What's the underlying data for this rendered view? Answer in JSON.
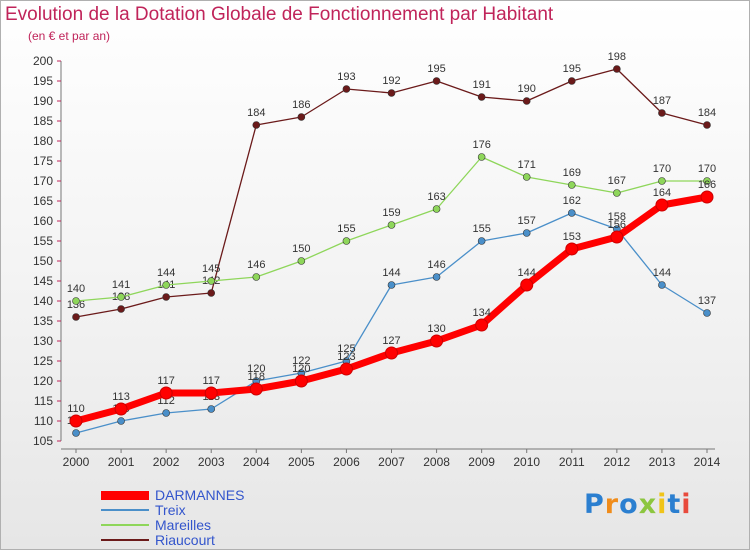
{
  "title": "Evolution de la Dotation Globale de Fonctionnement par Habitant",
  "subtitle": "(en € et par an)",
  "logo": {
    "p": "P",
    "r": "r",
    "o": "o",
    "x": "x",
    "i1": "i",
    "t": "t",
    "i2": "i"
  },
  "colors": {
    "title": "#c0245a",
    "darmannes": "#ff0000",
    "treix": "#4a8fc9",
    "mareilles": "#8ed65a",
    "riaucourt": "#6b1a1a"
  },
  "chart_data": {
    "type": "line",
    "title": "Evolution de la Dotation Globale de Fonctionnement par Habitant",
    "subtitle": "(en € et par an)",
    "x": [
      2000,
      2001,
      2002,
      2003,
      2004,
      2005,
      2006,
      2007,
      2008,
      2009,
      2010,
      2011,
      2012,
      2013,
      2014
    ],
    "ylim": [
      105,
      200
    ],
    "yticks": [
      105,
      110,
      115,
      120,
      125,
      130,
      135,
      140,
      145,
      150,
      155,
      160,
      165,
      170,
      175,
      180,
      185,
      190,
      195,
      200
    ],
    "grid": false,
    "legend_position": "bottom-left",
    "series": [
      {
        "name": "DARMANNES",
        "values": [
          110,
          113,
          117,
          117,
          118,
          120,
          123,
          127,
          130,
          134,
          144,
          153,
          156,
          164,
          166
        ]
      },
      {
        "name": "Treix",
        "values": [
          107,
          110,
          112,
          113,
          120,
          122,
          125,
          144,
          146,
          155,
          157,
          162,
          158,
          144,
          137
        ]
      },
      {
        "name": "Mareilles",
        "values": [
          140,
          141,
          144,
          145,
          146,
          150,
          155,
          159,
          163,
          176,
          171,
          169,
          167,
          170,
          170
        ]
      },
      {
        "name": "Riaucourt",
        "values": [
          136,
          138,
          141,
          142,
          184,
          186,
          193,
          192,
          195,
          191,
          190,
          195,
          198,
          187,
          184
        ]
      }
    ]
  }
}
